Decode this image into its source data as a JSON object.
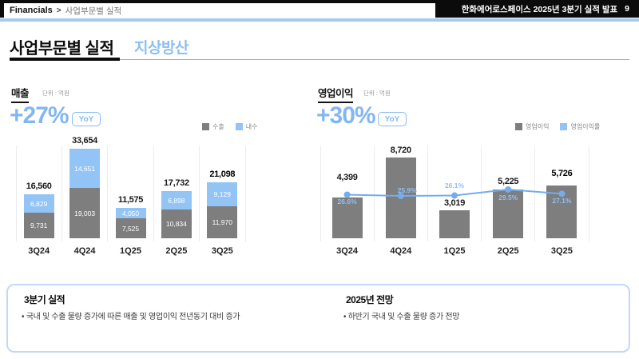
{
  "header": {
    "breadcrumb_root": "Financials",
    "breadcrumb_sep": ">",
    "breadcrumb_page": "사업부문별 실적",
    "deck_title": "한화에어로스페이스 2025년 3분기 실적 발표",
    "page_number": "9"
  },
  "title": {
    "main": "사업부문별 실적",
    "segment": "지상방산"
  },
  "colors": {
    "accent_blue": "#83B7F2",
    "bar_gray": "#7E7E7E",
    "bar_blue": "#93C4F6",
    "line_blue": "#74ACEC",
    "pct_label_blue": "#8FC0F4",
    "header_line_blue": "#A6C8F2",
    "box_border_blue": "#C3D8F2",
    "gridline": "#ececec"
  },
  "chart_data": [
    {
      "type": "bar",
      "subtype": "stacked",
      "title": "매출",
      "unit_label": "단위 : 억원",
      "growth": "+27%",
      "growth_badge": "YoY",
      "categories": [
        "3Q24",
        "4Q24",
        "1Q25",
        "2Q25",
        "3Q25"
      ],
      "series": [
        {
          "name": "수출",
          "color": "gray",
          "values": [
            9731,
            19003,
            7525,
            10834,
            11970
          ]
        },
        {
          "name": "내수",
          "color": "blue",
          "values": [
            6829,
            14651,
            4050,
            6898,
            9129
          ]
        }
      ],
      "totals": [
        16560,
        33654,
        11575,
        17732,
        21098
      ],
      "highlight_index": 4,
      "legend_position": "top-right",
      "grid": "vertical-separators",
      "ylim": [
        0,
        36000
      ]
    },
    {
      "type": "bar",
      "subtype": "bar-with-line",
      "title": "영업이익",
      "unit_label": "단위 : 억원",
      "growth": "+30%",
      "growth_badge": "YoY",
      "categories": [
        "3Q24",
        "4Q24",
        "1Q25",
        "2Q25",
        "3Q25"
      ],
      "series": [
        {
          "name": "영업이익",
          "color": "gray",
          "values": [
            4399,
            8720,
            3019,
            5225,
            5726
          ]
        }
      ],
      "line_series": {
        "name": "영업이익률",
        "unit": "%",
        "values": [
          26.6,
          25.9,
          26.1,
          29.5,
          27.1
        ]
      },
      "highlight_index": 4,
      "legend_position": "top-right",
      "grid": "vertical-separators",
      "ylim": [
        0,
        9300
      ]
    }
  ],
  "footer": {
    "left_title": "3분기 실적",
    "left_bullet": "국내 및 수출 물량 증가에 따른 매출 및 영업이익 전년동기 대비 증가",
    "right_title": "2025년 전망",
    "right_bullet": "하반기 국내 및 수출 물량 증가 전망"
  }
}
